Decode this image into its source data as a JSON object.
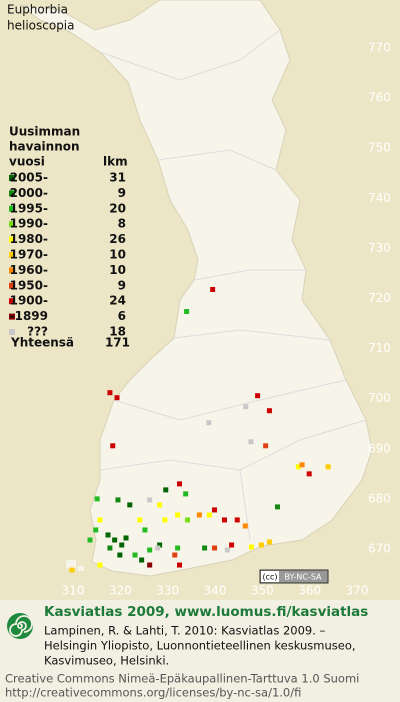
{
  "header": {
    "title_lines": [
      "Euphorbia",
      "helioscopia"
    ]
  },
  "legend": {
    "title_lines": [
      "Uusimman",
      "havainnon",
      "vuosi"
    ],
    "count_header": "lkm",
    "rows": [
      {
        "label": "2005-",
        "count": 31,
        "color": "#006400"
      },
      {
        "label": "2000-",
        "count": 9,
        "color": "#118811"
      },
      {
        "label": "1995-",
        "count": 20,
        "color": "#22bb22"
      },
      {
        "label": "1990-",
        "count": 8,
        "color": "#77dd11"
      },
      {
        "label": "1980-",
        "count": 26,
        "color": "#ffff00"
      },
      {
        "label": "1970-",
        "count": 10,
        "color": "#ffcc00"
      },
      {
        "label": "1960-",
        "count": 10,
        "color": "#ff8800"
      },
      {
        "label": "1950-",
        "count": 9,
        "color": "#e04010"
      },
      {
        "label": "1900-",
        "count": 24,
        "color": "#cc0000"
      },
      {
        "label": "-1899",
        "count": 6,
        "color": "#880000"
      },
      {
        "label": "???",
        "count": 18,
        "color": "#c8c8c8"
      }
    ],
    "total_label": "Yhteensä",
    "total": 171
  },
  "map": {
    "xticks": [
      310,
      320,
      330,
      340,
      350,
      360,
      370
    ],
    "yticks": [
      670,
      680,
      690,
      700,
      710,
      720,
      730,
      740,
      750,
      760,
      770
    ],
    "squares": [
      {
        "e": 339.5,
        "n": 721.8,
        "class": 8
      },
      {
        "e": 334.0,
        "n": 717.4,
        "class": 2
      },
      {
        "e": 317.8,
        "n": 701.2,
        "class": 8
      },
      {
        "e": 319.3,
        "n": 700.2,
        "class": 8
      },
      {
        "e": 349.0,
        "n": 700.6,
        "class": 8
      },
      {
        "e": 351.5,
        "n": 697.6,
        "class": 8
      },
      {
        "e": 346.5,
        "n": 698.4,
        "class": 10
      },
      {
        "e": 338.7,
        "n": 695.2,
        "class": 10
      },
      {
        "e": 347.6,
        "n": 691.4,
        "class": 10
      },
      {
        "e": 350.7,
        "n": 690.6,
        "class": 7
      },
      {
        "e": 357.6,
        "n": 686.4,
        "class": 4
      },
      {
        "e": 358.4,
        "n": 686.8,
        "class": 6
      },
      {
        "e": 363.9,
        "n": 686.4,
        "class": 5
      },
      {
        "e": 359.9,
        "n": 685.0,
        "class": 8
      },
      {
        "e": 318.4,
        "n": 690.6,
        "class": 8
      },
      {
        "e": 353.2,
        "n": 678.4,
        "class": 1
      },
      {
        "e": 332.5,
        "n": 683.0,
        "class": 8
      },
      {
        "e": 333.8,
        "n": 681.0,
        "class": 2
      },
      {
        "e": 329.6,
        "n": 681.8,
        "class": 0
      },
      {
        "e": 328.3,
        "n": 678.8,
        "class": 4
      },
      {
        "e": 326.2,
        "n": 679.8,
        "class": 10
      },
      {
        "e": 322.0,
        "n": 678.8,
        "class": 0
      },
      {
        "e": 319.5,
        "n": 679.8,
        "class": 1
      },
      {
        "e": 315.1,
        "n": 680.0,
        "class": 2
      },
      {
        "e": 315.7,
        "n": 675.8,
        "class": 4
      },
      {
        "e": 314.8,
        "n": 673.8,
        "class": 2
      },
      {
        "e": 317.4,
        "n": 672.8,
        "class": 0
      },
      {
        "e": 318.8,
        "n": 671.8,
        "class": 0
      },
      {
        "e": 320.3,
        "n": 670.8,
        "class": 0
      },
      {
        "e": 321.2,
        "n": 672.2,
        "class": 0
      },
      {
        "e": 317.8,
        "n": 670.2,
        "class": 1
      },
      {
        "e": 324.1,
        "n": 675.8,
        "class": 4
      },
      {
        "e": 325.2,
        "n": 673.8,
        "class": 2
      },
      {
        "e": 328.3,
        "n": 670.8,
        "class": 0
      },
      {
        "e": 329.4,
        "n": 675.8,
        "class": 4
      },
      {
        "e": 332.1,
        "n": 676.8,
        "class": 4
      },
      {
        "e": 334.2,
        "n": 675.8,
        "class": 3
      },
      {
        "e": 336.7,
        "n": 676.8,
        "class": 6
      },
      {
        "e": 338.8,
        "n": 676.8,
        "class": 4
      },
      {
        "e": 339.9,
        "n": 677.8,
        "class": 8
      },
      {
        "e": 342.0,
        "n": 675.8,
        "class": 8
      },
      {
        "e": 344.7,
        "n": 675.8,
        "class": 8
      },
      {
        "e": 346.4,
        "n": 674.6,
        "class": 6
      },
      {
        "e": 343.5,
        "n": 670.8,
        "class": 8
      },
      {
        "e": 342.6,
        "n": 669.8,
        "class": 10
      },
      {
        "e": 347.7,
        "n": 670.4,
        "class": 4
      },
      {
        "e": 349.8,
        "n": 670.8,
        "class": 5
      },
      {
        "e": 351.5,
        "n": 671.4,
        "class": 5
      },
      {
        "e": 337.8,
        "n": 670.2,
        "class": 1
      },
      {
        "e": 339.9,
        "n": 670.2,
        "class": 7
      },
      {
        "e": 332.1,
        "n": 670.2,
        "class": 2
      },
      {
        "e": 326.2,
        "n": 669.8,
        "class": 2
      },
      {
        "e": 323.1,
        "n": 668.8,
        "class": 2
      },
      {
        "e": 319.9,
        "n": 668.8,
        "class": 0
      },
      {
        "e": 315.7,
        "n": 666.8,
        "class": 4
      },
      {
        "e": 309.8,
        "n": 665.8,
        "class": 5
      },
      {
        "e": 313.6,
        "n": 671.8,
        "class": 2
      },
      {
        "e": 332.5,
        "n": 666.8,
        "class": 8
      },
      {
        "e": 331.5,
        "n": 668.8,
        "class": 7
      },
      {
        "e": 326.2,
        "n": 666.8,
        "class": 9
      },
      {
        "e": 324.5,
        "n": 667.8,
        "class": 0
      },
      {
        "e": 327.9,
        "n": 670.2,
        "class": 10
      }
    ],
    "license_badge": "BY-NC-SA"
  },
  "footer": {
    "title": "Kasviatlas 2009, www.luomus.fi/kasviatlas",
    "citation_lines": [
      "Lampinen, R. & Lahti, T. 2010: Kasviatlas 2009. –",
      "Helsingin Yliopisto, Luonnontieteellinen keskusmuseo,",
      "Kasvimuseo, Helsinki."
    ],
    "license_lines": [
      "Creative Commons Nimeä-Epäkaupallinen-Tarttuva 1.0 Suomi",
      "http://creativecommons.org/licenses/by-nc-sa/1.0/fi"
    ]
  }
}
